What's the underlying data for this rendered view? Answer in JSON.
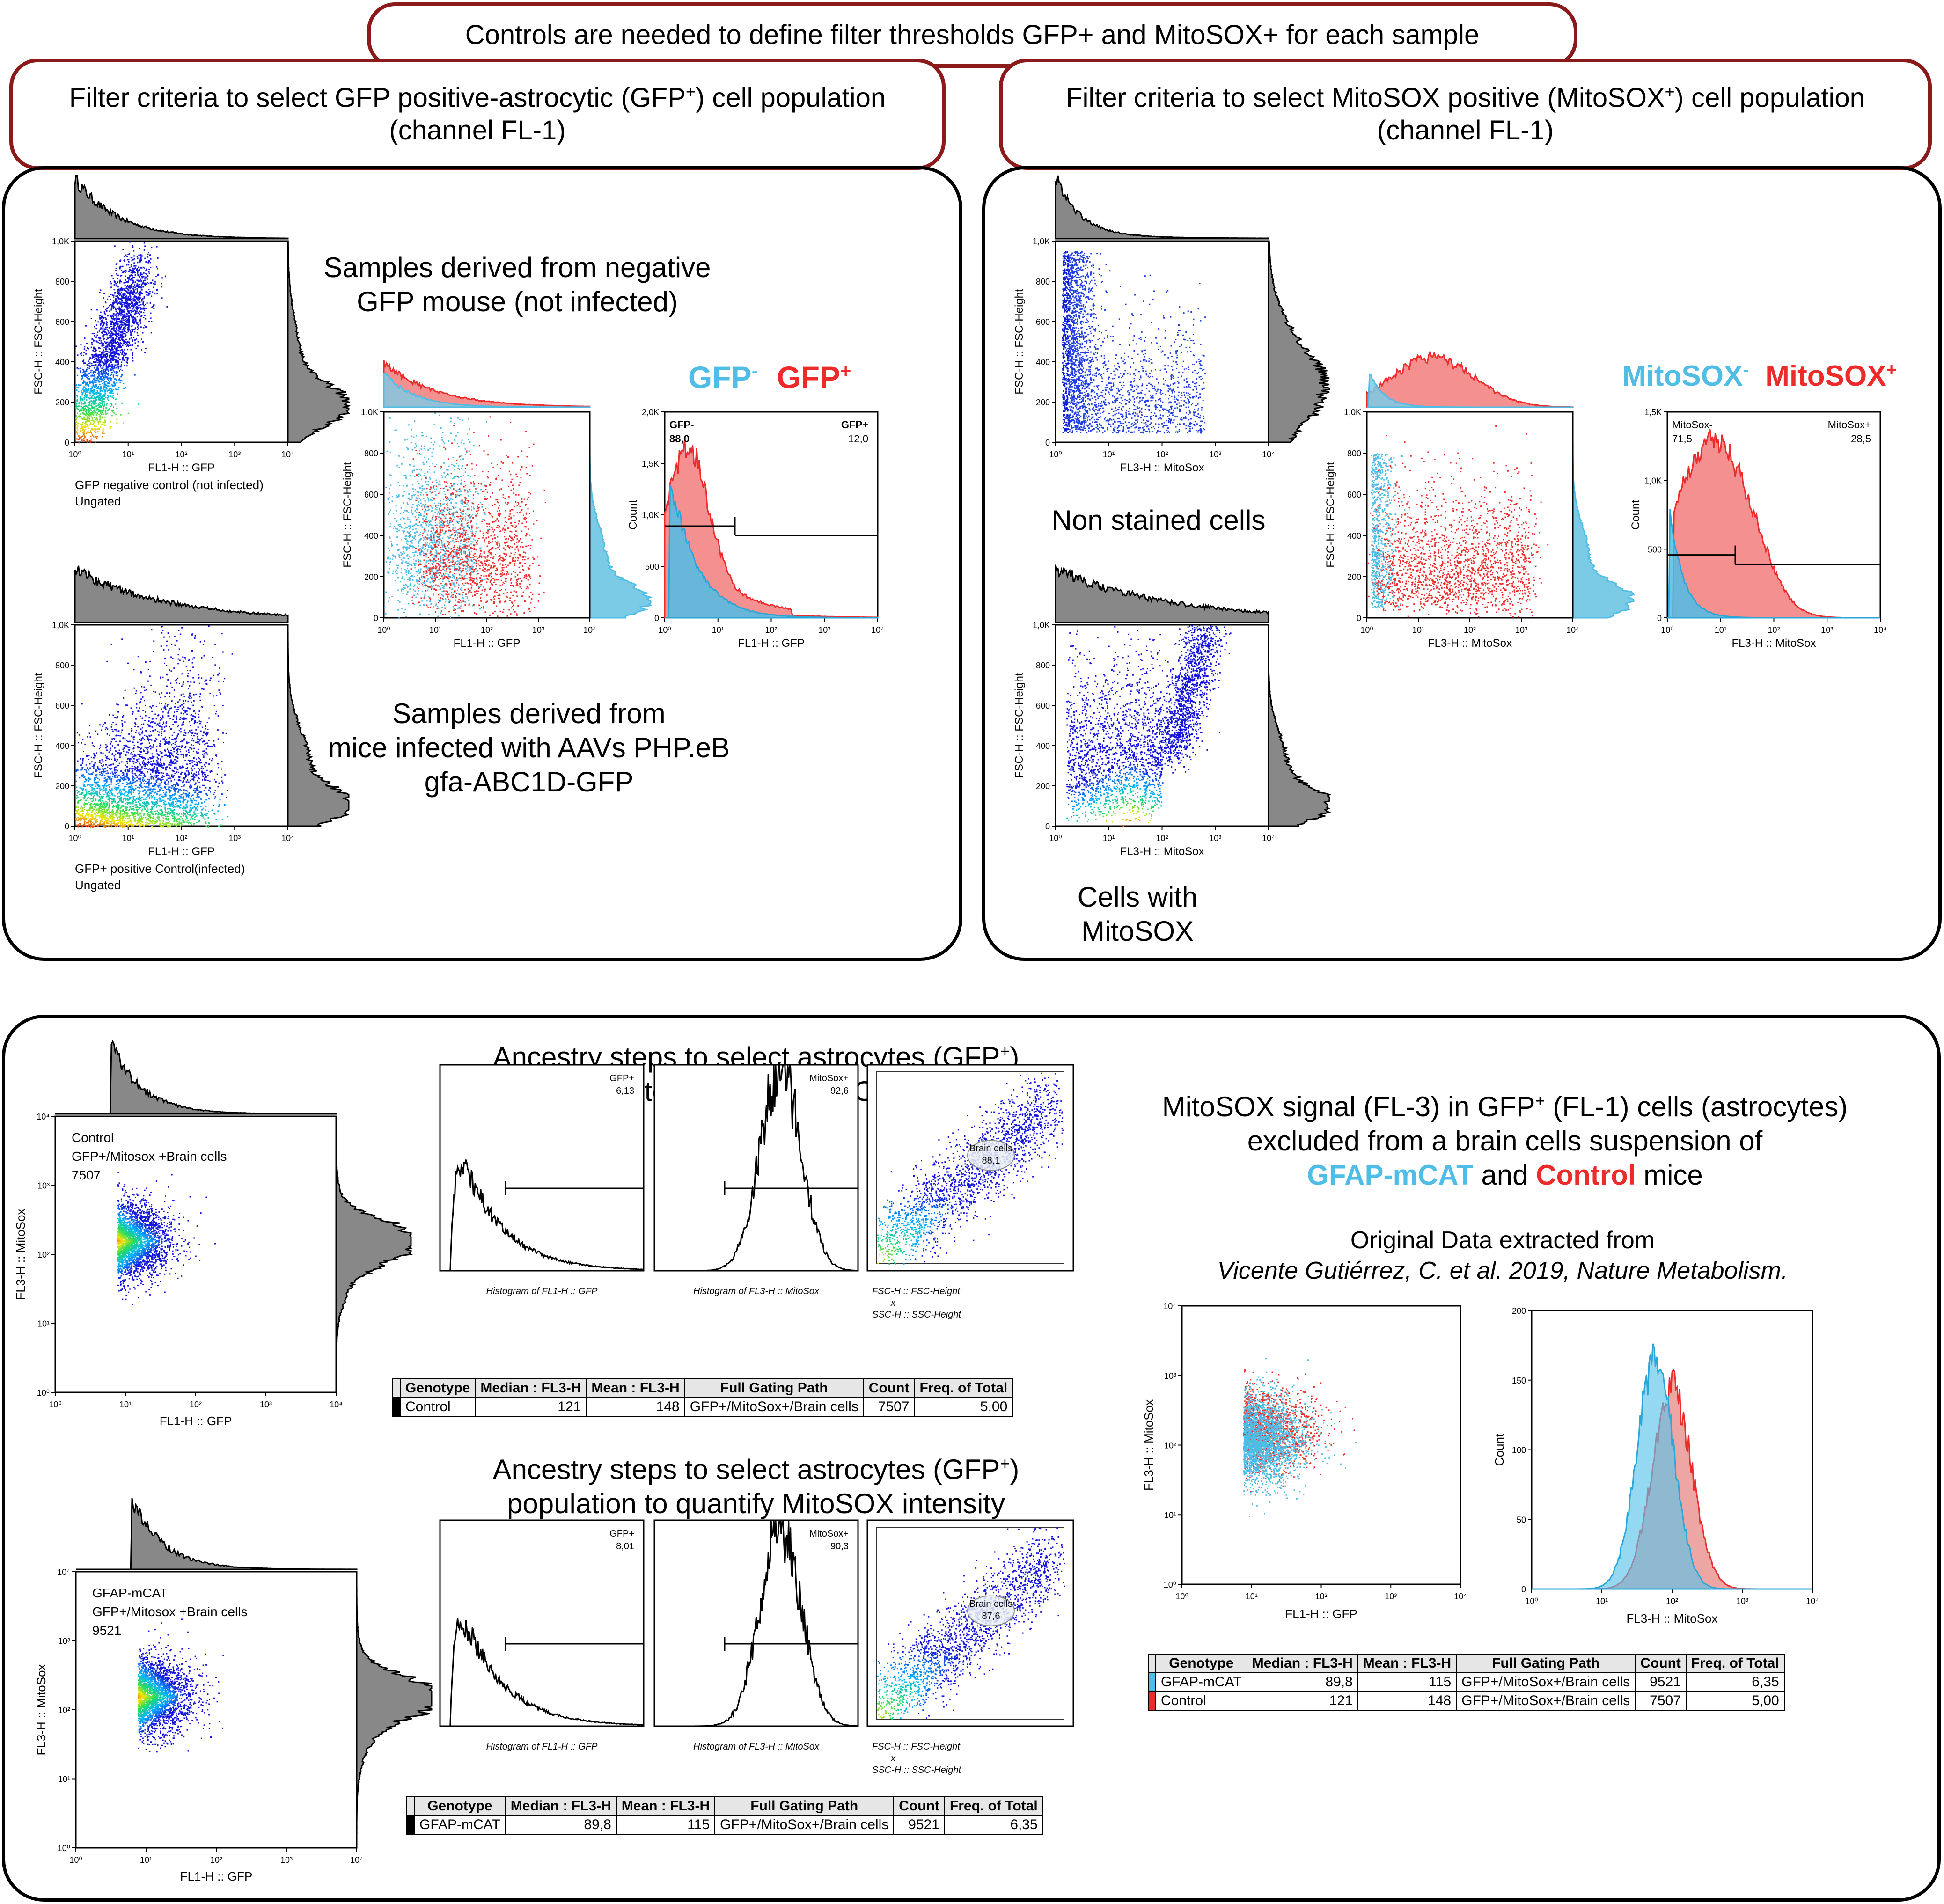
{
  "banner": "Controls are needed to define filter thresholds GFP+ and MitoSOX+ for each sample",
  "left_header": {
    "line1a": "Filter criteria to select GFP positive-astrocytic (GFP",
    "sup": "+",
    "line1b": ") cell population",
    "line2": "(channel FL-1)"
  },
  "right_header": {
    "line1a": "Filter criteria to select MitoSOX positive (MitoSOX",
    "sup": "+",
    "line1b": ") cell population",
    "line2": "(channel FL-1)"
  },
  "left_panel": {
    "neg_text": [
      "Samples derived from negative",
      "GFP mouse (not infected)"
    ],
    "inf_text": [
      "Samples derived from",
      "mice infected with AAVs PHP.eB",
      "gfa-ABC1D-GFP"
    ],
    "plot1": {
      "xlabel": "FL1-H :: GFP",
      "ylabel": "FSC-H :: FSC-Height",
      "cap1": "GFP negative control (not infected)",
      "cap2": "Ungated",
      "yticks": [
        "1,0K",
        "800",
        "600",
        "400",
        "200",
        "0"
      ],
      "xticks": [
        "10⁰",
        "10¹",
        "10²",
        "10³",
        "10⁴"
      ]
    },
    "plot2": {
      "xlabel": "FL1-H :: GFP",
      "ylabel": "FSC-H :: FSC-Height",
      "cap1": "GFP+ positive Control(infected)",
      "cap2": "Ungated",
      "yticks": [
        "1,0K",
        "800",
        "600",
        "400",
        "200",
        "0"
      ],
      "xticks": [
        "10⁰",
        "10¹",
        "10²",
        "10³",
        "10⁴"
      ]
    },
    "overlay": {
      "xlabel": "FL1-H :: GFP",
      "ylabel": "FSC-H :: FSC-Height",
      "yticks": [
        "1,0K",
        "800",
        "600",
        "400",
        "200",
        "0"
      ],
      "xticks": [
        "10⁰",
        "10¹",
        "10²",
        "10³",
        "10⁴"
      ]
    },
    "hist": {
      "xlabel": "FL1-H :: GFP",
      "ylabel": "Count",
      "gate_neg": "GFP-",
      "gate_neg_val": "88,0",
      "gate_pos": "GFP+",
      "gate_pos_val": "12,0",
      "yticks": [
        "2,0K",
        "1,5K",
        "1,0K",
        "500",
        "0"
      ],
      "xticks": [
        "10⁰",
        "10¹",
        "10²",
        "10³",
        "10⁴"
      ]
    },
    "legend_neg": "GFP",
    "legend_neg_sup": "-",
    "legend_pos": "GFP",
    "legend_pos_sup": "+"
  },
  "right_panel": {
    "nonstained": "Non stained cells",
    "with_mitosox": [
      "Cells with",
      "MitoSOX"
    ],
    "plot1": {
      "xlabel": "FL3-H :: MitoSox",
      "ylabel": "FSC-H :: FSC-Height",
      "yticks": [
        "1,0K",
        "800",
        "600",
        "400",
        "200",
        "0"
      ],
      "xticks": [
        "10⁰",
        "10¹",
        "10²",
        "10³",
        "10⁴"
      ]
    },
    "plot2": {
      "xlabel": "FL3-H :: MitoSox",
      "ylabel": "FSC-H :: FSC-Height",
      "yticks": [
        "1,0K",
        "800",
        "600",
        "400",
        "200",
        "0"
      ],
      "xticks": [
        "10⁰",
        "10¹",
        "10²",
        "10³",
        "10⁴"
      ]
    },
    "overlay": {
      "xlabel": "FL3-H :: MitoSox",
      "ylabel": "FSC-H :: FSC-Height",
      "yticks": [
        "1,0K",
        "800",
        "600",
        "400",
        "200",
        "0"
      ],
      "xticks": [
        "10⁰",
        "10¹",
        "10²",
        "10³",
        "10⁴"
      ]
    },
    "hist": {
      "xlabel": "FL3-H :: MitoSox",
      "ylabel": "Count",
      "gate_neg": "MitoSox-",
      "gate_neg_val": "71,5",
      "gate_pos": "MitoSox+",
      "gate_pos_val": "28,5",
      "yticks": [
        "1,5K",
        "1,0K",
        "500",
        "0"
      ],
      "xticks": [
        "10⁰",
        "10¹",
        "10²",
        "10³",
        "10⁴"
      ]
    },
    "legend_neg": "MitoSOX",
    "legend_neg_sup": "-",
    "legend_pos": "MitoSOX",
    "legend_pos_sup": "+"
  },
  "bottom_panel": {
    "ancestry_title_a": "Ancestry steps to select astrocytes (GFP",
    "ancestry_title_sup": "+",
    "ancestry_title_b": ")",
    "ancestry_title_line2": "population to quantify MitoSOX intensity",
    "control": {
      "plot_label1": "Control",
      "plot_label2": "GFP+/Mitosox +Brain cells",
      "plot_label3": "7507",
      "xlabel": "FL1-H :: GFP",
      "ylabel": "FL3-H :: MitoSox",
      "gfp_gate": "GFP+",
      "gfp_val": "6,13",
      "mitosox_gate": "MitoSox+",
      "mitosox_val": "92,6",
      "brain_gate": "Brain cells",
      "brain_val": "88,1",
      "h1_caption": "Histogram of FL1-H :: GFP",
      "h2_caption": "Histogram of FL3-H :: MitoSox",
      "dot_caption": [
        "FSC-H :: FSC-Height",
        "x",
        "SSC-H :: SSC-Height"
      ]
    },
    "gfap": {
      "plot_label1": "GFAP-mCAT",
      "plot_label2": "GFP+/Mitosox +Brain cells",
      "plot_label3": "9521",
      "xlabel": "FL1-H :: GFP",
      "ylabel": "FL3-H :: MitoSox",
      "gfp_gate": "GFP+",
      "gfp_val": "8,01",
      "mitosox_gate": "MitoSox+",
      "mitosox_val": "90,3",
      "brain_gate": "Brain cells",
      "brain_val": "87,6",
      "h1_caption": "Histogram of FL1-H :: GFP",
      "h2_caption": "Histogram of FL3-H :: MitoSox",
      "dot_caption": [
        "FSC-H :: FSC-Height",
        "x",
        "SSC-H :: SSC-Height"
      ]
    },
    "log_ticks": [
      "10⁰",
      "10¹",
      "10²",
      "10³",
      "10⁴"
    ],
    "table_headers": [
      "Genotype",
      "Median : FL3-H",
      "Mean : FL3-H",
      "Full Gating Path",
      "Count",
      "Freq. of Total"
    ],
    "table_control": [
      "Control",
      "121",
      "148",
      "GFP+/MitoSox+/Brain cells",
      "7507",
      "5,00"
    ],
    "table_gfap": [
      "GFAP-mCAT",
      "89,8",
      "115",
      "GFP+/MitoSox+/Brain cells",
      "9521",
      "6,35"
    ],
    "summary": {
      "line1a": "MitoSOX signal (FL-3) in GFP",
      "sup1": "+",
      "line1b": " (FL-1) cells (astrocytes)",
      "line2": "excluded from a brain cells suspension of",
      "gfap": "GFAP-mCAT",
      "and": " and ",
      "control": "Control",
      "mice": " mice",
      "orig1": "Original Data extracted from",
      "orig2": "Vicente Gutiérrez, C. et al. 2019, Nature Metabolism.",
      "dot_xlabel": "FL1-H :: GFP",
      "dot_ylabel": "FL3-H :: MitoSox",
      "hist_xlabel": "FL3-H :: MitoSox",
      "hist_ylabel": "Count",
      "hist_yticks": [
        "200",
        "150",
        "100",
        "50",
        "0"
      ]
    }
  },
  "colors": {
    "dark_red_border": "#8b1a1a",
    "gfp_neg": "#4fbde6",
    "pos_red": "#ee2b2b",
    "gfap_blue": "#4fbde6",
    "control_red": "#ee2b2b"
  },
  "chart_data": [
    {
      "type": "area",
      "title": "",
      "xlabel": "FL1-H :: GFP",
      "ylabel": "Count",
      "series": [
        {
          "name": "GFP-",
          "values": []
        },
        {
          "name": "GFP+",
          "values": []
        }
      ],
      "gates": [
        {
          "name": "GFP-",
          "percent": 88.0
        },
        {
          "name": "GFP+",
          "percent": 12.0
        }
      ],
      "ylim": [
        0,
        2000
      ]
    },
    {
      "type": "area",
      "title": "",
      "xlabel": "FL3-H :: MitoSox",
      "ylabel": "Count",
      "series": [
        {
          "name": "MitoSox-",
          "values": []
        },
        {
          "name": "MitoSox+",
          "values": []
        }
      ],
      "gates": [
        {
          "name": "MitoSox-",
          "percent": 71.5
        },
        {
          "name": "MitoSox+",
          "percent": 28.5
        }
      ],
      "ylim": [
        0,
        1500
      ]
    },
    {
      "type": "table",
      "columns": [
        "Genotype",
        "Median : FL3-H",
        "Mean : FL3-H",
        "Full Gating Path",
        "Count",
        "Freq. of Total"
      ],
      "rows": [
        [
          "GFAP-mCAT",
          89.8,
          115,
          "GFP+/MitoSox+/Brain cells",
          9521,
          6.35
        ],
        [
          "Control",
          121,
          148,
          "GFP+/MitoSox+/Brain cells",
          7507,
          5.0
        ]
      ]
    }
  ]
}
